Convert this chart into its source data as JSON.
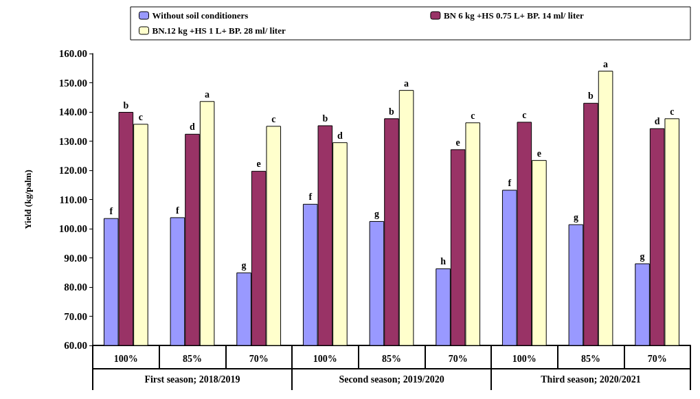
{
  "chart_data": {
    "type": "bar",
    "ylabel": "Yield (kg/palm)",
    "categories": [
      "100%",
      "85%",
      "70%",
      "100%",
      "85%",
      "70%",
      "100%",
      "85%",
      "70%"
    ],
    "annotations": [
      "First season; 2018/2019",
      "Second season; 2019/2020",
      "Third season; 2020/2021"
    ],
    "series": [
      {
        "name": "Without soil conditioners",
        "color": "#9999ff",
        "values": [
          103.6,
          103.9,
          85.0,
          108.5,
          102.6,
          86.4,
          113.3,
          101.5,
          88.1
        ],
        "value_labels": [
          "f",
          "f",
          "g",
          "f",
          "g",
          "h",
          "f",
          "g",
          "g"
        ]
      },
      {
        "name": "BN 6 kg +HS 0.75 L+ BP. 14 ml/ liter",
        "color": "#993366",
        "values": [
          140.0,
          132.5,
          119.8,
          135.4,
          137.8,
          127.2,
          136.6,
          143.1,
          134.4
        ],
        "value_labels": [
          "b",
          "d",
          "e",
          "b",
          "b",
          "e",
          "c",
          "b",
          "d"
        ]
      },
      {
        "name": "BN.12 kg +HS 1 L+ BP. 28 ml/ liter",
        "color": "#ffffcc",
        "values": [
          135.9,
          143.7,
          135.2,
          129.6,
          147.5,
          136.4,
          123.5,
          154.1,
          137.8
        ],
        "value_labels": [
          "c",
          "a",
          "c",
          "d",
          "a",
          "c",
          "e",
          "a",
          "c"
        ]
      }
    ],
    "ylim": [
      60,
      160
    ],
    "yticks": [
      {
        "value": 60,
        "label": "60.00"
      },
      {
        "value": 70,
        "label": "70.00"
      },
      {
        "value": 80,
        "label": "80.00"
      },
      {
        "value": 90,
        "label": "90.00"
      },
      {
        "value": 100,
        "label": "100.00"
      },
      {
        "value": 110,
        "label": "110.00"
      },
      {
        "value": 120,
        "label": "120.00"
      },
      {
        "value": 130,
        "label": "130.00"
      },
      {
        "value": 140,
        "label": "140.00"
      },
      {
        "value": 150,
        "label": "150.00"
      },
      {
        "value": 160,
        "label": "160.00"
      }
    ],
    "grid": false,
    "legend": "top"
  }
}
